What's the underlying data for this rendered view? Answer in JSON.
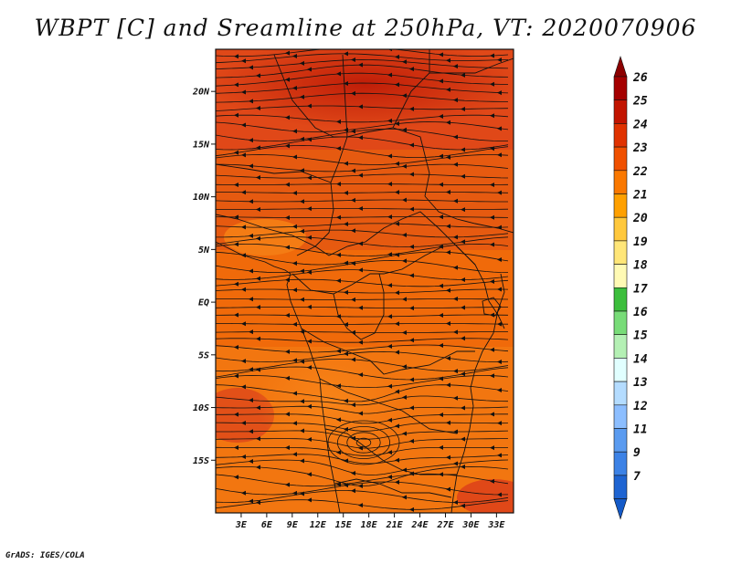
{
  "title": "WBPT [C] and Sreamline at 250hPa, VT: 2020070906",
  "credit": "GrADS: IGES/COLA",
  "map": {
    "lon_range": [
      0,
      35
    ],
    "lat_range": [
      -20,
      24
    ],
    "x_ticks": [
      {
        "lon": 3,
        "label": "3E"
      },
      {
        "lon": 6,
        "label": "6E"
      },
      {
        "lon": 9,
        "label": "9E"
      },
      {
        "lon": 12,
        "label": "12E"
      },
      {
        "lon": 15,
        "label": "15E"
      },
      {
        "lon": 18,
        "label": "18E"
      },
      {
        "lon": 21,
        "label": "21E"
      },
      {
        "lon": 24,
        "label": "24E"
      },
      {
        "lon": 27,
        "label": "27E"
      },
      {
        "lon": 30,
        "label": "30E"
      },
      {
        "lon": 33,
        "label": "33E"
      }
    ],
    "y_ticks": [
      {
        "lat": 20,
        "label": "20N"
      },
      {
        "lat": 15,
        "label": "15N"
      },
      {
        "lat": 10,
        "label": "10N"
      },
      {
        "lat": 5,
        "label": "5N"
      },
      {
        "lat": 0,
        "label": "EQ"
      },
      {
        "lat": -5,
        "label": "5S"
      },
      {
        "lat": -10,
        "label": "10S"
      },
      {
        "lat": -15,
        "label": "15S"
      }
    ]
  },
  "colorbar": {
    "levels": [
      {
        "label": "26",
        "color": "#a50000"
      },
      {
        "label": "25",
        "color": "#c21400"
      },
      {
        "label": "24",
        "color": "#e03200"
      },
      {
        "label": "23",
        "color": "#f05000"
      },
      {
        "label": "22",
        "color": "#fa7800"
      },
      {
        "label": "21",
        "color": "#ffa000"
      },
      {
        "label": "20",
        "color": "#ffc83c"
      },
      {
        "label": "19",
        "color": "#ffe678"
      },
      {
        "label": "18",
        "color": "#fffab4"
      },
      {
        "label": "17",
        "color": "#3cbe3c"
      },
      {
        "label": "16",
        "color": "#78dc78"
      },
      {
        "label": "15",
        "color": "#b4f0b4"
      },
      {
        "label": "14",
        "color": "#e1ffff"
      },
      {
        "label": "13",
        "color": "#b4dcff"
      },
      {
        "label": "12",
        "color": "#8cbeff"
      },
      {
        "label": "11",
        "color": "#5a9bf0"
      },
      {
        "label": "9",
        "color": "#3c82e6"
      },
      {
        "label": "7",
        "color": "#1e64d2"
      }
    ],
    "top_arrow_color": "#8c0000",
    "bottom_arrow_color": "#145ac8"
  },
  "colors": {
    "field_main": "#f06a0a",
    "field_warm": "#e8421a",
    "field_hot": "#c82a10",
    "field_cool": "#f57f10",
    "streamline": "#111111",
    "border": "#111111"
  }
}
